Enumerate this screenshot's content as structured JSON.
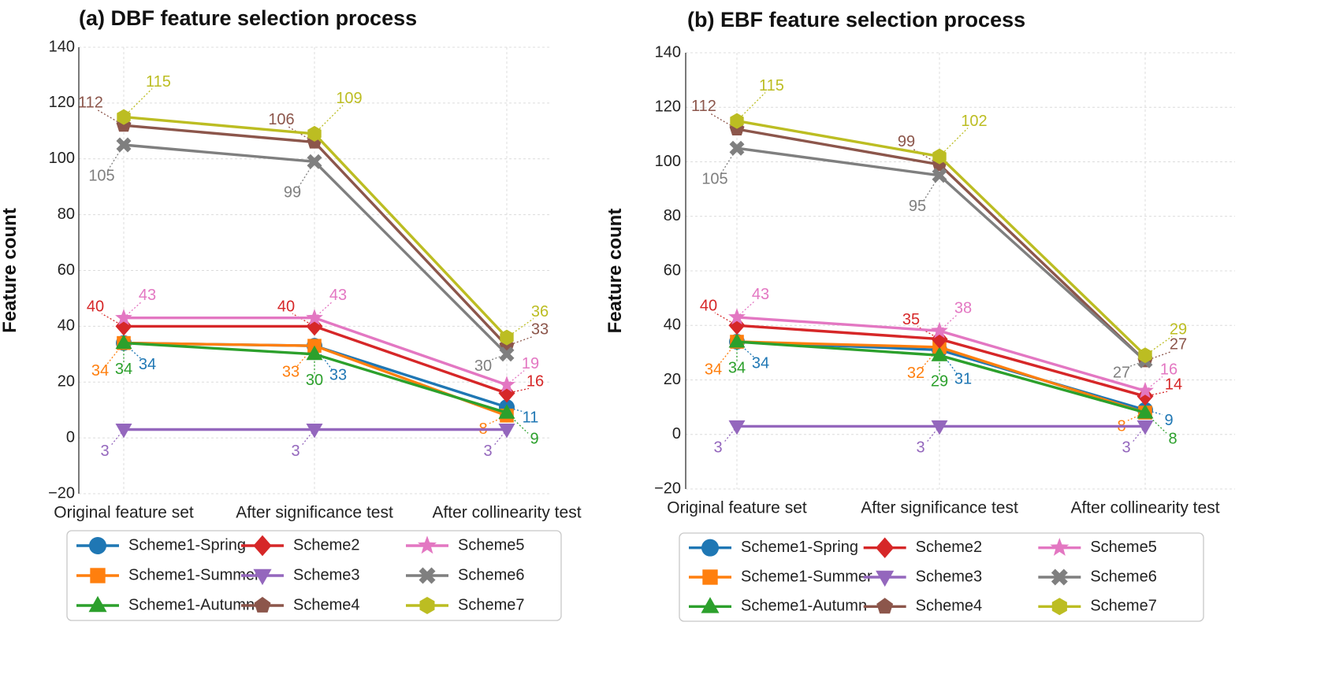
{
  "figure": {
    "legend_entries": [
      {
        "name": "Scheme1-Spring",
        "color": "#1f77b4",
        "marker": "circle"
      },
      {
        "name": "Scheme1-Summer",
        "color": "#ff7f0e",
        "marker": "square"
      },
      {
        "name": "Scheme1-Autumn",
        "color": "#2ca02c",
        "marker": "triangle-up"
      },
      {
        "name": "Scheme2",
        "color": "#d62728",
        "marker": "diamond"
      },
      {
        "name": "Scheme3",
        "color": "#9467bd",
        "marker": "triangle-down"
      },
      {
        "name": "Scheme4",
        "color": "#8c564b",
        "marker": "pentagon"
      },
      {
        "name": "Scheme5",
        "color": "#e377c2",
        "marker": "star"
      },
      {
        "name": "Scheme6",
        "color": "#7f7f7f",
        "marker": "x-cross"
      },
      {
        "name": "Scheme7",
        "color": "#bcbd22",
        "marker": "hexagon"
      }
    ]
  },
  "chart_data": [
    {
      "type": "line",
      "title": "(a)    DBF feature selection process",
      "ylabel": "Feature count",
      "xlabel": "",
      "categories": [
        "Original feature set",
        "After significance test",
        "After collinearity test"
      ],
      "ylim": [
        -20,
        140
      ],
      "yticks": [
        "−20",
        "0",
        "20",
        "40",
        "60",
        "80",
        "100",
        "120",
        "140"
      ],
      "grid": true,
      "legend_position": "below",
      "series": [
        {
          "name": "Scheme1-Spring",
          "values": [
            34,
            33,
            11
          ],
          "labels": [
            "34",
            "33",
            "11"
          ]
        },
        {
          "name": "Scheme1-Summer",
          "values": [
            34,
            33,
            8
          ],
          "labels": [
            "34",
            "33",
            "8"
          ]
        },
        {
          "name": "Scheme1-Autumn",
          "values": [
            34,
            30,
            9
          ],
          "labels": [
            "34",
            "30",
            "9"
          ]
        },
        {
          "name": "Scheme2",
          "values": [
            40,
            40,
            16
          ],
          "labels": [
            "40",
            "40",
            "16"
          ]
        },
        {
          "name": "Scheme3",
          "values": [
            3,
            3,
            3
          ],
          "labels": [
            "3",
            "3",
            "3"
          ]
        },
        {
          "name": "Scheme4",
          "values": [
            112,
            106,
            33
          ],
          "labels": [
            "112",
            "106",
            "33"
          ]
        },
        {
          "name": "Scheme5",
          "values": [
            43,
            43,
            19
          ],
          "labels": [
            "43",
            "43",
            "19"
          ]
        },
        {
          "name": "Scheme6",
          "values": [
            105,
            99,
            30
          ],
          "labels": [
            "105",
            "99",
            "30"
          ]
        },
        {
          "name": "Scheme7",
          "values": [
            115,
            109,
            36
          ],
          "labels": [
            "115",
            "109",
            "36"
          ]
        }
      ]
    },
    {
      "type": "line",
      "title": "(b)    EBF feature selection process",
      "ylabel": "Feature count",
      "xlabel": "",
      "categories": [
        "Original feature set",
        "After significance test",
        "After collinearity test"
      ],
      "ylim": [
        -20,
        140
      ],
      "yticks": [
        "−20",
        "0",
        "20",
        "40",
        "60",
        "80",
        "100",
        "120",
        "140"
      ],
      "grid": true,
      "legend_position": "below",
      "series": [
        {
          "name": "Scheme1-Spring",
          "values": [
            34,
            31,
            9
          ],
          "labels": [
            "34",
            "31",
            "9"
          ]
        },
        {
          "name": "Scheme1-Summer",
          "values": [
            34,
            32,
            8
          ],
          "labels": [
            "34",
            "32",
            "8"
          ]
        },
        {
          "name": "Scheme1-Autumn",
          "values": [
            34,
            29,
            8
          ],
          "labels": [
            "34",
            "29",
            "8"
          ]
        },
        {
          "name": "Scheme2",
          "values": [
            40,
            35,
            14
          ],
          "labels": [
            "40",
            "35",
            "14"
          ]
        },
        {
          "name": "Scheme3",
          "values": [
            3,
            3,
            3
          ],
          "labels": [
            "3",
            "3",
            "3"
          ]
        },
        {
          "name": "Scheme4",
          "values": [
            112,
            99,
            27
          ],
          "labels": [
            "112",
            "99",
            "27"
          ]
        },
        {
          "name": "Scheme5",
          "values": [
            43,
            38,
            16
          ],
          "labels": [
            "43",
            "38",
            "16"
          ]
        },
        {
          "name": "Scheme6",
          "values": [
            105,
            95,
            27
          ],
          "labels": [
            "105",
            "95",
            "27"
          ]
        },
        {
          "name": "Scheme7",
          "values": [
            115,
            102,
            29
          ],
          "labels": [
            "115",
            "102",
            "29"
          ]
        }
      ]
    }
  ]
}
